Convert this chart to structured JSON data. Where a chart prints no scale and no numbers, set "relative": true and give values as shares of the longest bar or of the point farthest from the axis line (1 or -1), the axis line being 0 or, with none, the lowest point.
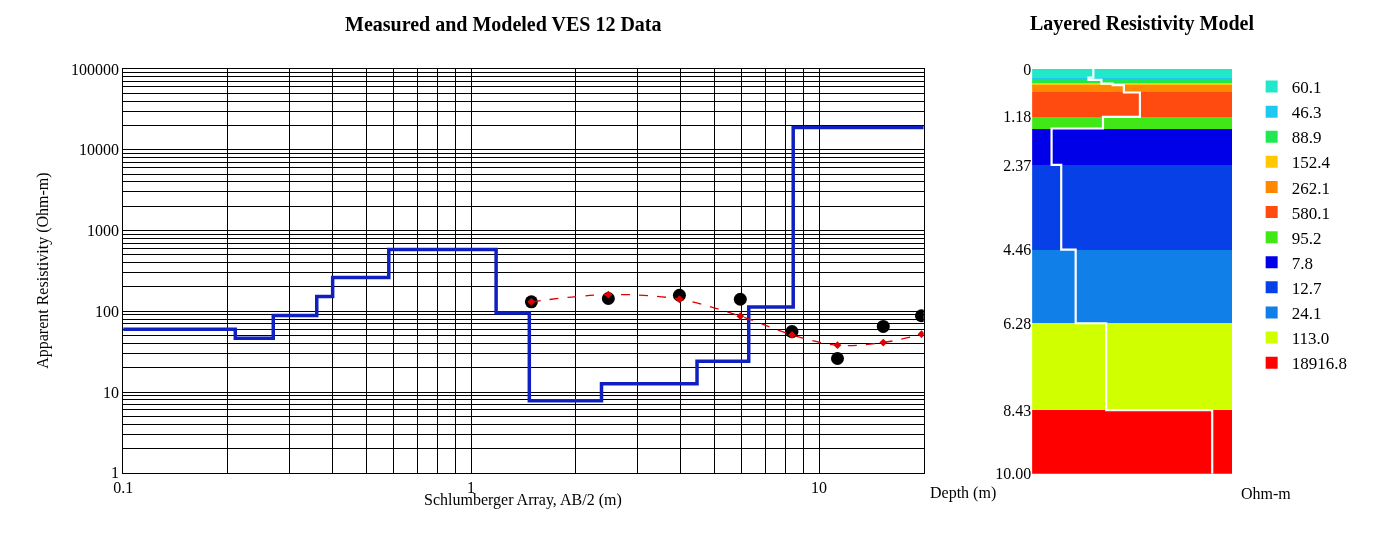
{
  "chart_data": [
    {
      "type": "step",
      "title": "Measured and Modeled VES 12 Data",
      "xlabel": "Schlumberger Array, AB/2 (m)",
      "ylabel": "Apparent Resistivity (Ohm-m)",
      "log": "xy",
      "grid": true,
      "xlim": [
        0.1,
        20
      ],
      "xticks": [
        0.1,
        1,
        10
      ],
      "ylim": [
        1,
        100000
      ],
      "yticks": [
        1,
        10,
        100,
        1000,
        10000,
        100000
      ],
      "series": [
        {
          "color": "#1020c0",
          "x": [
            0.1,
            0.21,
            0.27,
            0.36,
            0.4,
            0.58,
            1.18,
            1.47,
            2.37,
            4.46,
            6.28,
            8.43,
            20
          ],
          "values": [
            60.1,
            46.3,
            88.9,
            152.4,
            262.1,
            580.1,
            95.2,
            7.8,
            12.7,
            24.1,
            113.0,
            18916.8,
            18916.8
          ]
        },
        {
          "type": "scatter",
          "color": "#000000",
          "marker": "circle",
          "x": [
            1.49,
            2.48,
            3.97,
            5.94,
            8.36,
            11.3,
            15.3,
            19.7
          ],
          "values": [
            131,
            144,
            158,
            141,
            56,
            26,
            65,
            88
          ]
        },
        {
          "type": "line",
          "color": "#e00000",
          "marker": "diamond",
          "line_style": "dashed",
          "x": [
            1.49,
            2.48,
            3.97,
            5.94,
            8.36,
            11.3,
            15.3,
            19.7
          ],
          "values": [
            131,
            161,
            141,
            87,
            51,
            38,
            41,
            52
          ]
        }
      ]
    },
    {
      "type": "bar",
      "stacked": true,
      "title": "Layered Resistivity Model",
      "ylabel": "Depth (m)",
      "legend": "right",
      "categories": [
        null
      ],
      "ylim": [
        10,
        0
      ],
      "yticks": [
        0,
        1.18,
        2.37,
        4.46,
        6.28,
        8.43,
        {
          "value": 10,
          "label": "10.00"
        }
      ],
      "series": [
        {
          "name": "60.1",
          "color": "#20e8c8",
          "values": [
            0.21
          ]
        },
        {
          "name": "46.3",
          "color": "#20c8f0",
          "values": [
            0.06
          ]
        },
        {
          "name": "88.9",
          "color": "#20e850",
          "values": [
            0.09
          ]
        },
        {
          "name": "152.4",
          "color": "#ffc800",
          "values": [
            0.04
          ]
        },
        {
          "name": "262.1",
          "color": "#ff8800",
          "values": [
            0.18
          ]
        },
        {
          "name": "580.1",
          "color": "#ff4a10",
          "values": [
            0.6
          ]
        },
        {
          "name": "95.2",
          "color": "#40e818",
          "values": [
            0.29
          ]
        },
        {
          "name": "7.8",
          "color": "#0000e8",
          "values": [
            0.9
          ]
        },
        {
          "name": "12.7",
          "color": "#0840e8",
          "values": [
            2.09
          ]
        },
        {
          "name": "24.1",
          "color": "#1080e8",
          "values": [
            1.82
          ]
        },
        {
          "name": "113.0",
          "color": "#d0ff00",
          "values": [
            2.15
          ]
        },
        {
          "name": "18916.8",
          "color": "#ff0000",
          "values": [
            1.57
          ]
        }
      ],
      "annotations": [
        "Ohm-m"
      ]
    },
    {
      "type": "line",
      "relative": true,
      "orientation": "horizontal",
      "ylim": [
        10,
        0
      ],
      "tick_labels": false,
      "series": [
        {
          "color": "#ffffff",
          "x": [
            0,
            0.21,
            0.21,
            0.27,
            0.27,
            0.36,
            0.36,
            0.4,
            0.4,
            0.58,
            0.58,
            1.18,
            1.18,
            1.47,
            1.47,
            2.37,
            2.37,
            4.46,
            4.46,
            6.28,
            6.28,
            8.43,
            8.43,
            10
          ],
          "values": [
            0.26,
            0.26,
            0.23,
            0.23,
            0.31,
            0.31,
            0.38,
            0.38,
            0.45,
            0.45,
            0.55,
            0.55,
            0.32,
            0.32,
            0,
            0,
            0.06,
            0.06,
            0.15,
            0.15,
            0.34,
            0.34,
            1,
            1
          ]
        }
      ]
    }
  ]
}
